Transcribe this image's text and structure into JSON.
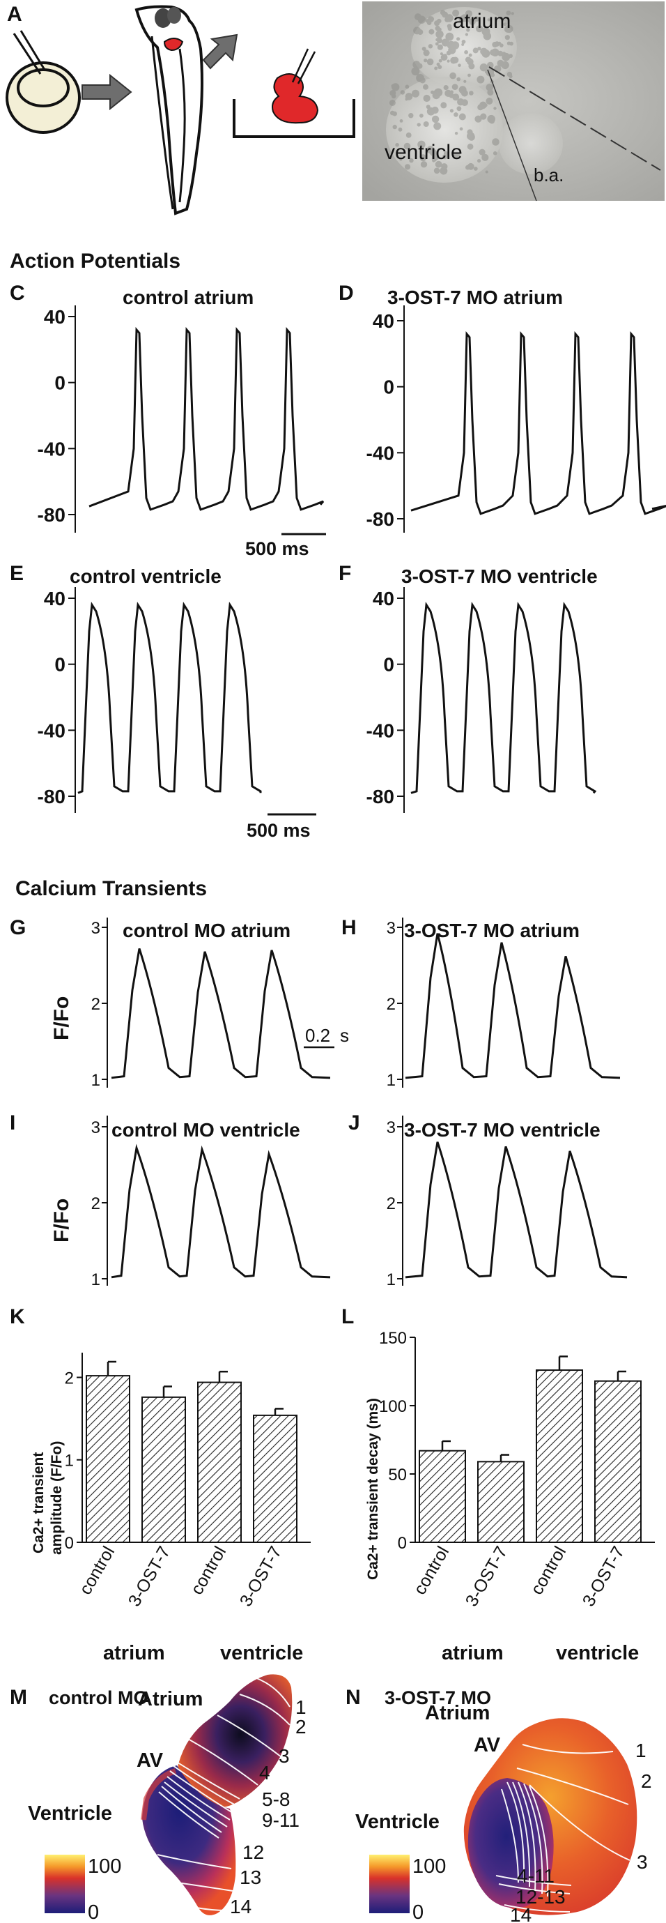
{
  "panels": {
    "A": "A",
    "B": "B",
    "C": "C",
    "D": "D",
    "E": "E",
    "F": "F",
    "G": "G",
    "H": "H",
    "I": "I",
    "J": "J",
    "K": "K",
    "L": "L",
    "M": "M",
    "N": "N"
  },
  "photo_labels": {
    "atrium": "atrium",
    "ventricle": "ventricle",
    "ba": "b.a."
  },
  "sections": {
    "action_potentials": "Action Potentials",
    "calcium_transients": "Calcium Transients"
  },
  "ap": {
    "titles": {
      "C": "control atrium",
      "D": "3-OST-7 MO atrium",
      "E": "control ventricle",
      "F": "3-OST-7 MO ventricle"
    },
    "yticks": [
      "40",
      "0",
      "-40",
      "-80"
    ],
    "scale_bar": "500 ms"
  },
  "ca": {
    "titles": {
      "G": "control MO atrium",
      "H": "3-OST-7 MO atrium",
      "I": "control MO ventricle",
      "J": "3-OST-7 MO ventricle"
    },
    "ylabel": "F/Fo",
    "yticks": [
      "3",
      "2",
      "1"
    ],
    "scale_bar": "0.2 s",
    "scale_bar_value": "0.2",
    "scale_bar_unit": "s"
  },
  "chart_data": [
    {
      "type": "bar",
      "panel": "K",
      "ylabel": "Ca2+ transient amplitude (F/Fo)",
      "ylabel_line1": "Ca2+ transient",
      "ylabel_line2": "amplitude (F/Fo)",
      "categories": [
        "control",
        "3-OST-7",
        "control",
        "3-OST-7"
      ],
      "groups": [
        "atrium",
        "ventricle"
      ],
      "values": [
        2.02,
        1.76,
        1.94,
        1.54
      ],
      "errors": [
        0.17,
        0.13,
        0.13,
        0.08
      ],
      "ylim": [
        0,
        2.3
      ],
      "yticks": [
        0,
        1,
        2
      ],
      "ytick_labels": [
        "0",
        "1",
        "2"
      ]
    },
    {
      "type": "bar",
      "panel": "L",
      "ylabel": "Ca2+ transient decay (ms)",
      "categories": [
        "control",
        "3-OST-7",
        "control",
        "3-OST-7"
      ],
      "groups": [
        "atrium",
        "ventricle"
      ],
      "values": [
        67,
        59,
        126,
        118
      ],
      "errors": [
        7,
        5,
        10,
        7
      ],
      "ylim": [
        0,
        150
      ],
      "yticks": [
        0,
        50,
        100,
        150
      ],
      "ytick_labels": [
        "0",
        "50",
        "100",
        "150"
      ]
    }
  ],
  "maps": {
    "M": {
      "title": "control MO",
      "regions": {
        "atrium": "Atrium",
        "av": "AV",
        "ventricle": "Ventricle"
      },
      "isochrones": [
        "1",
        "2",
        "3",
        "4",
        "5-8",
        "9-11",
        "12",
        "13",
        "14"
      ]
    },
    "N": {
      "title": "3-OST-7 MO",
      "regions": {
        "atrium": "Atrium",
        "av": "AV",
        "ventricle": "Ventricle"
      },
      "isochrones": [
        "1",
        "2",
        "3",
        "4-11",
        "12-13",
        "14"
      ]
    },
    "colorbar": {
      "max": "100",
      "min": "0"
    },
    "colors": {
      "low": "#1c1d78",
      "mid": "#d9322a",
      "high": "#fff070"
    }
  },
  "colors": {
    "heart_red": "#e0282a",
    "egg": "#f3efd6",
    "photo_bg": "#b4b4b0"
  }
}
